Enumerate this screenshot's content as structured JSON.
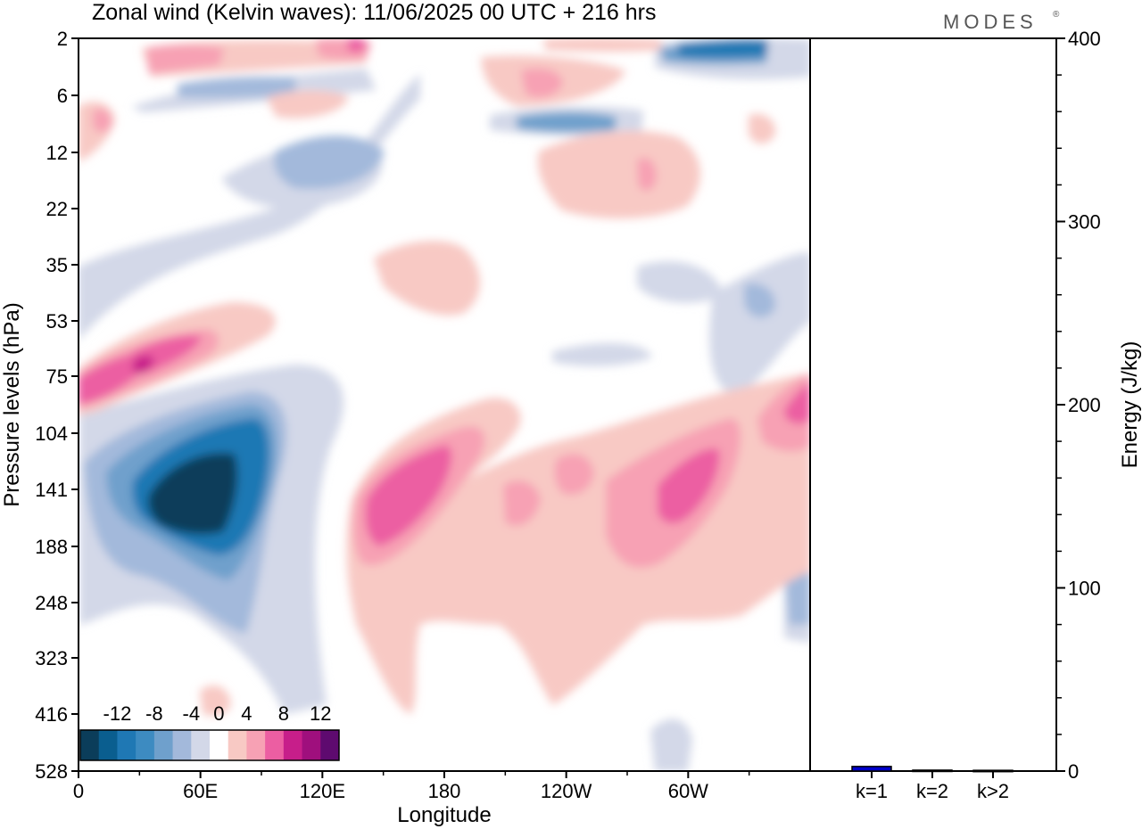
{
  "title": "Zonal wind (Kelvin waves):  11/06/2025  00 UTC  + 216 hrs",
  "brand": "MODES",
  "brand_mark": "®",
  "colors": {
    "-16": "#0b3d5a",
    "-14": "#0a5e8f",
    "-12": "#1f78b4",
    "-10": "#3d8bc1",
    "-8": "#6fa0cc",
    "-6": "#a3b9db",
    "-4": "#d3d8e8",
    "0": "#ffffff",
    "4": "#f8c9c4",
    "6": "#f7a1b4",
    "8": "#ec5ea2",
    "10": "#c71e8a",
    "12": "#9f0f7d",
    "14": "#5e0a6f"
  },
  "chart_data": [
    {
      "type": "heatmap",
      "title": "Zonal wind (Kelvin waves):  11/06/2025  00 UTC  + 216 hrs",
      "xlabel": "Longitude",
      "ylabel": "Pressure levels (hPa)",
      "x_ticks": [
        "0",
        "60E",
        "120E",
        "180",
        "120W",
        "60W"
      ],
      "x_tick_degrees": [
        0,
        60,
        120,
        180,
        240,
        300
      ],
      "xlim": [
        0,
        360
      ],
      "y_ticks": [
        "2",
        "6",
        "12",
        "22",
        "35",
        "53",
        "75",
        "104",
        "141",
        "188",
        "248",
        "323",
        "416",
        "528"
      ],
      "y_scale": "log",
      "colorbar": {
        "tick_labels": [
          "-12",
          "-8",
          "-4",
          "0",
          "4",
          "8",
          "12"
        ],
        "levels": [
          -16,
          -14,
          -12,
          -10,
          -8,
          -6,
          -4,
          -2,
          2,
          4,
          6,
          8,
          10,
          12,
          14
        ],
        "colors": [
          "#0b3d5a",
          "#0a5e8f",
          "#1f78b4",
          "#3d8bc1",
          "#6fa0cc",
          "#a3b9db",
          "#d3d8e8",
          "#ffffff",
          "#f8c9c4",
          "#f7a1b4",
          "#ec5ea2",
          "#c71e8a",
          "#9f0f7d",
          "#5e0a6f"
        ]
      },
      "features": [
        {
          "lon": 65,
          "p": 141,
          "value": -16
        },
        {
          "lon": 90,
          "p": 120,
          "value": -12
        },
        {
          "lon": 160,
          "p": 150,
          "value": 8
        },
        {
          "lon": 300,
          "p": 150,
          "value": 8
        },
        {
          "lon": 30,
          "p": 75,
          "value": 10
        },
        {
          "lon": 360,
          "p": 95,
          "value": 8
        },
        {
          "lon": 300,
          "p": 2,
          "value": -10
        }
      ]
    },
    {
      "type": "bar",
      "categories": [
        "k=1",
        "k=2",
        "k>2"
      ],
      "values": [
        2.5,
        0.5,
        0.4
      ],
      "ylabel": "Energy (J/kg)",
      "ylim": [
        0,
        400
      ],
      "y_ticks": [
        "0",
        "100",
        "200",
        "300",
        "400"
      ],
      "bar_color": "#0000cc"
    }
  ]
}
